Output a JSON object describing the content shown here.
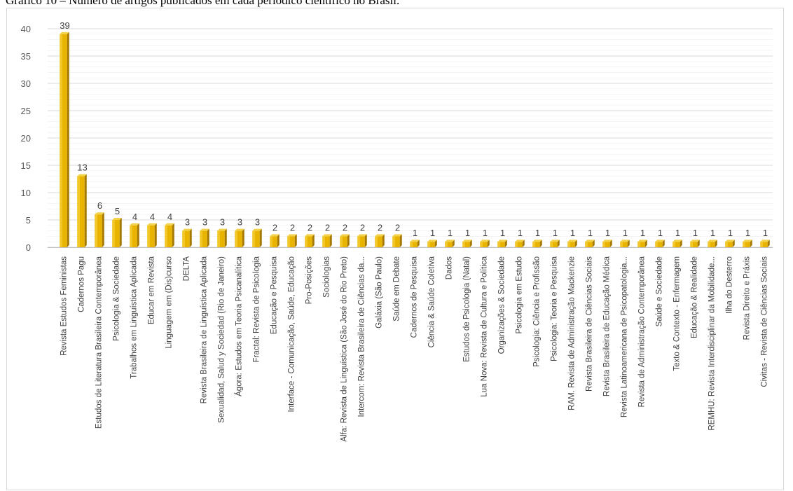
{
  "caption": "Gráfico 10 – Número de artigos publicados em cada periódico científico no Brasil.",
  "colors": {
    "bar_front": "#e8b400",
    "bar_side": "#a67a00",
    "bar_top": "#f3d24a",
    "grid": "#d9d9d9",
    "axis": "#bfbfbf"
  },
  "chart_data": {
    "type": "bar",
    "title": "",
    "xlabel": "",
    "ylabel": "",
    "ylim": [
      0,
      40
    ],
    "yticks": [
      0,
      5,
      10,
      15,
      20,
      25,
      30,
      35,
      40
    ],
    "grid": true,
    "categories": [
      "Revista Estudos Feministas",
      "Cadernos Pagu",
      "Estudos de Literatura Brasileira Contemporânea",
      "Psicologia & Sociedade",
      "Trabalhos em Linguística Aplicada",
      "Educar em Revista",
      "Linguagem em (Dis)curso",
      "DELTA",
      "Revista Brasileira de Linguística Aplicada",
      "Sexualidad, Salud y Sociedad (Rio de Janeiro)",
      "Ágora: Estudos em Teoria Psicanalítica",
      "Fractal: Revista de Psicologia",
      "Educação e Pesquisa",
      "Interface - Comunicação, Saúde, Educação",
      "Pro-Posições",
      "Sociologias",
      "Alfa: Revista de Linguística (São José do Rio Preto)",
      "Intercom: Revista Brasileira de Ciências da...",
      "Galáxia (São Paulo)",
      "Saúde em Debate",
      "Cadernos de Pesquisa",
      "Ciência & Saúde Coletiva",
      "Dados",
      "Estudos de Psicologia (Natal)",
      "Lua Nova: Revista de Cultura e Política",
      "Organizações & Sociedade",
      "Psicologia em Estudo",
      "Psicologia: Ciência e Profissão",
      "Psicologia: Teoria e Pesquisa",
      "RAM. Revista de Administração Mackenzie",
      "Revista Brasileira de Ciências Sociais",
      "Revista Brasileira de Educação Médica",
      "Revista Latinoamericana de Psicopatologia...",
      "Revista de Administração Contemporânea",
      "Saúde e Sociedade",
      "Texto & Contexto - Enfermagem",
      "Educação & Realidade",
      "REMHU: Revista Interdisciplinar da Mobilidade...",
      "Ilha do Desterro",
      "Revista Direito e Práxis",
      "Civitas - Revista de Ciências Sociais"
    ],
    "values": [
      39,
      13,
      6,
      5,
      4,
      4,
      4,
      3,
      3,
      3,
      3,
      3,
      2,
      2,
      2,
      2,
      2,
      2,
      2,
      2,
      1,
      1,
      1,
      1,
      1,
      1,
      1,
      1,
      1,
      1,
      1,
      1,
      1,
      1,
      1,
      1,
      1,
      1,
      1,
      1,
      1
    ]
  }
}
